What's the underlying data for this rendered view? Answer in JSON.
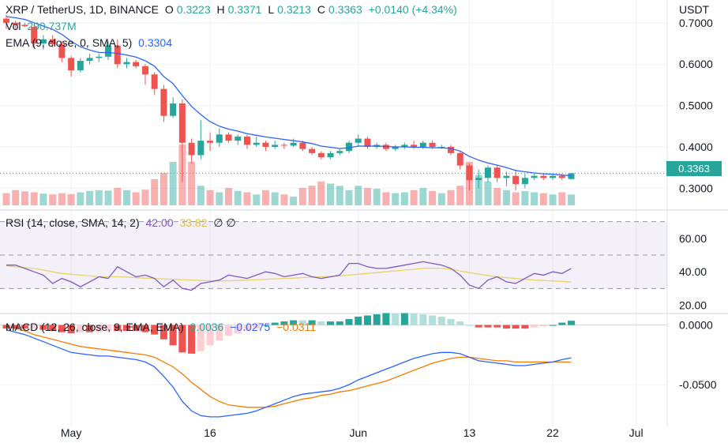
{
  "header": {
    "symbol": "XRP / TetherUS, 1D, BINANCE",
    "o_label": "O",
    "o": "0.3223",
    "h_label": "H",
    "h": "0.3371",
    "l_label": "L",
    "l": "0.3213",
    "c_label": "C",
    "c": "0.3363",
    "change": "+0.0140 (+4.34%)",
    "currency": "USDT"
  },
  "vol": {
    "label": "Vol",
    "value": "290.737M"
  },
  "ema": {
    "label": "EMA (9, close, 0, SMA, 5)",
    "value": "0.3304"
  },
  "rsi": {
    "label": "RSI (14, close, SMA, 14, 2)",
    "value": "42.00",
    "ma": "33.82",
    "icons": "∅ ∅"
  },
  "macd": {
    "label": "MACD (12, 26, close, 9, EMA, EMA)",
    "hist": "0.0036",
    "macd": "−0.0275",
    "signal": "−0.0311"
  },
  "price_tag": "0.3363",
  "colors": {
    "up": "#26a69a",
    "down": "#ef5350",
    "ema": "#2962ff",
    "rsi": "#7e57c2",
    "rsi_ma": "#e8d36a",
    "macd": "#2962ff",
    "signal": "#f57c00"
  },
  "chart_data": {
    "type": "candlestick",
    "price_axis": {
      "ylim": [
        0.255,
        0.755
      ],
      "ticks": [
        "0.7000",
        "0.6000",
        "0.5000",
        "0.4000",
        "0.3000"
      ]
    },
    "rsi_axis": {
      "ylim": [
        16,
        75
      ],
      "ticks": [
        "60.00",
        "40.00",
        "20.00"
      ],
      "bands": [
        70,
        50,
        30
      ]
    },
    "macd_axis": {
      "ylim": [
        -0.085,
        0.009
      ],
      "ticks": [
        "0.0000",
        "-0.0500"
      ]
    },
    "x_labels": [
      {
        "text": "May",
        "index": 7
      },
      {
        "text": "16",
        "index": 22
      },
      {
        "text": "Jun",
        "index": 38
      },
      {
        "text": "13",
        "index": 50
      },
      {
        "text": "22",
        "index": 59
      },
      {
        "text": "Jul",
        "index": 68
      }
    ],
    "candles": [
      [
        0.71,
        0.72,
        0.685,
        0.7
      ],
      [
        0.7,
        0.705,
        0.685,
        0.695
      ],
      [
        0.695,
        0.7,
        0.69,
        0.692
      ],
      [
        0.69,
        0.695,
        0.64,
        0.65
      ],
      [
        0.65,
        0.67,
        0.635,
        0.66
      ],
      [
        0.66,
        0.67,
        0.64,
        0.648
      ],
      [
        0.648,
        0.655,
        0.605,
        0.615
      ],
      [
        0.615,
        0.62,
        0.57,
        0.585
      ],
      [
        0.585,
        0.615,
        0.58,
        0.608
      ],
      [
        0.608,
        0.625,
        0.6,
        0.615
      ],
      [
        0.615,
        0.625,
        0.605,
        0.618
      ],
      [
        0.618,
        0.655,
        0.61,
        0.645
      ],
      [
        0.645,
        0.66,
        0.59,
        0.6
      ],
      [
        0.6,
        0.615,
        0.59,
        0.605
      ],
      [
        0.605,
        0.61,
        0.59,
        0.595
      ],
      [
        0.595,
        0.6,
        0.55,
        0.575
      ],
      [
        0.575,
        0.58,
        0.525,
        0.54
      ],
      [
        0.54,
        0.55,
        0.46,
        0.475
      ],
      [
        0.475,
        0.52,
        0.47,
        0.505
      ],
      [
        0.505,
        0.515,
        0.315,
        0.41
      ],
      [
        0.41,
        0.42,
        0.36,
        0.38
      ],
      [
        0.38,
        0.465,
        0.37,
        0.415
      ],
      [
        0.415,
        0.435,
        0.39,
        0.41
      ],
      [
        0.41,
        0.445,
        0.4,
        0.43
      ],
      [
        0.43,
        0.435,
        0.41,
        0.415
      ],
      [
        0.415,
        0.43,
        0.405,
        0.425
      ],
      [
        0.425,
        0.43,
        0.395,
        0.405
      ],
      [
        0.405,
        0.425,
        0.4,
        0.41
      ],
      [
        0.41,
        0.415,
        0.39,
        0.4
      ],
      [
        0.4,
        0.415,
        0.395,
        0.405
      ],
      [
        0.405,
        0.41,
        0.395,
        0.403
      ],
      [
        0.403,
        0.42,
        0.4,
        0.41
      ],
      [
        0.41,
        0.415,
        0.39,
        0.395
      ],
      [
        0.395,
        0.4,
        0.38,
        0.385
      ],
      [
        0.385,
        0.39,
        0.37,
        0.375
      ],
      [
        0.375,
        0.39,
        0.37,
        0.385
      ],
      [
        0.385,
        0.395,
        0.38,
        0.39
      ],
      [
        0.39,
        0.415,
        0.385,
        0.41
      ],
      [
        0.41,
        0.43,
        0.4,
        0.42
      ],
      [
        0.42,
        0.425,
        0.395,
        0.4
      ],
      [
        0.4,
        0.41,
        0.395,
        0.405
      ],
      [
        0.405,
        0.41,
        0.39,
        0.395
      ],
      [
        0.395,
        0.405,
        0.39,
        0.4
      ],
      [
        0.4,
        0.41,
        0.395,
        0.405
      ],
      [
        0.405,
        0.415,
        0.395,
        0.4
      ],
      [
        0.4,
        0.415,
        0.395,
        0.41
      ],
      [
        0.41,
        0.415,
        0.395,
        0.4
      ],
      [
        0.4,
        0.405,
        0.395,
        0.4
      ],
      [
        0.4,
        0.405,
        0.38,
        0.385
      ],
      [
        0.385,
        0.39,
        0.345,
        0.355
      ],
      [
        0.355,
        0.36,
        0.295,
        0.32
      ],
      [
        0.32,
        0.345,
        0.3,
        0.325
      ],
      [
        0.325,
        0.355,
        0.315,
        0.35
      ],
      [
        0.35,
        0.355,
        0.315,
        0.325
      ],
      [
        0.325,
        0.34,
        0.305,
        0.33
      ],
      [
        0.33,
        0.345,
        0.295,
        0.31
      ],
      [
        0.31,
        0.335,
        0.3,
        0.325
      ],
      [
        0.325,
        0.335,
        0.32,
        0.33
      ],
      [
        0.33,
        0.335,
        0.32,
        0.325
      ],
      [
        0.325,
        0.335,
        0.32,
        0.33
      ],
      [
        0.33,
        0.335,
        0.32,
        0.325
      ],
      [
        0.3223,
        0.3371,
        0.3213,
        0.3363
      ]
    ],
    "volume_rel": [
      0.28,
      0.35,
      0.32,
      0.3,
      0.27,
      0.25,
      0.28,
      0.26,
      0.3,
      0.33,
      0.35,
      0.34,
      0.4,
      0.35,
      0.3,
      0.36,
      0.6,
      0.75,
      1.0,
      1.4,
      1.0,
      0.45,
      0.35,
      0.3,
      0.4,
      0.33,
      0.3,
      0.25,
      0.35,
      0.3,
      0.25,
      0.2,
      0.4,
      0.45,
      0.55,
      0.5,
      0.45,
      0.35,
      0.45,
      0.4,
      0.38,
      0.3,
      0.28,
      0.3,
      0.35,
      0.4,
      0.33,
      0.28,
      0.35,
      0.45,
      1.0,
      0.7,
      0.55,
      0.4,
      0.35,
      0.3,
      0.33,
      0.3,
      0.28,
      0.25,
      0.3,
      0.25
    ],
    "ema": [
      0.715,
      0.712,
      0.708,
      0.7,
      0.692,
      0.684,
      0.672,
      0.655,
      0.642,
      0.634,
      0.628,
      0.628,
      0.626,
      0.622,
      0.617,
      0.608,
      0.595,
      0.57,
      0.553,
      0.524,
      0.498,
      0.478,
      0.461,
      0.45,
      0.443,
      0.438,
      0.432,
      0.428,
      0.424,
      0.421,
      0.418,
      0.415,
      0.412,
      0.408,
      0.402,
      0.399,
      0.396,
      0.398,
      0.402,
      0.402,
      0.402,
      0.401,
      0.4,
      0.4,
      0.399,
      0.399,
      0.398,
      0.398,
      0.396,
      0.39,
      0.377,
      0.368,
      0.361,
      0.356,
      0.35,
      0.343,
      0.34,
      0.337,
      0.335,
      0.334,
      0.332,
      0.3304
    ],
    "rsi": [
      44,
      44,
      42,
      40,
      38,
      33,
      36,
      34,
      31,
      34,
      37,
      36,
      43,
      40,
      37,
      38,
      36,
      31,
      35,
      30,
      29,
      33,
      34,
      35,
      38,
      37,
      36,
      38,
      40,
      39,
      37,
      38,
      39,
      37,
      36,
      37,
      38,
      45,
      45,
      43,
      42,
      42,
      43,
      44,
      45,
      46,
      45,
      44,
      42,
      38,
      32,
      30,
      35,
      37,
      34,
      33,
      36,
      39,
      38,
      40,
      39,
      42.0
    ],
    "rsi_ma": [
      43.5,
      43.0,
      42.5,
      42.0,
      41.0,
      40.0,
      39.0,
      38.5,
      38.0,
      37.5,
      37.0,
      37.0,
      37.0,
      36.8,
      36.5,
      36.2,
      36.0,
      35.8,
      35.5,
      35.2,
      35.0,
      34.8,
      34.6,
      34.5,
      34.6,
      34.8,
      35.0,
      35.2,
      35.5,
      35.8,
      36.0,
      36.2,
      36.5,
      36.8,
      37.0,
      37.2,
      37.5,
      38.0,
      38.5,
      39.0,
      39.5,
      40.0,
      40.5,
      41.0,
      41.5,
      42.0,
      42.2,
      42.0,
      41.5,
      40.5,
      39.5,
      38.5,
      37.8,
      37.0,
      36.5,
      36.0,
      35.5,
      35.0,
      34.8,
      34.5,
      34.2,
      33.82
    ],
    "macd": [
      -0.004,
      -0.006,
      -0.008,
      -0.011,
      -0.014,
      -0.017,
      -0.02,
      -0.023,
      -0.024,
      -0.025,
      -0.026,
      -0.026,
      -0.027,
      -0.028,
      -0.029,
      -0.031,
      -0.035,
      -0.043,
      -0.052,
      -0.064,
      -0.072,
      -0.076,
      -0.077,
      -0.077,
      -0.076,
      -0.075,
      -0.074,
      -0.072,
      -0.069,
      -0.066,
      -0.063,
      -0.06,
      -0.058,
      -0.057,
      -0.056,
      -0.055,
      -0.053,
      -0.05,
      -0.046,
      -0.043,
      -0.04,
      -0.037,
      -0.034,
      -0.031,
      -0.028,
      -0.026,
      -0.024,
      -0.023,
      -0.023,
      -0.024,
      -0.027,
      -0.03,
      -0.031,
      -0.032,
      -0.033,
      -0.034,
      -0.034,
      -0.033,
      -0.032,
      -0.031,
      -0.029,
      -0.0275
    ],
    "signal": [
      -0.001,
      -0.003,
      -0.005,
      -0.008,
      -0.01,
      -0.012,
      -0.014,
      -0.016,
      -0.018,
      -0.019,
      -0.02,
      -0.021,
      -0.022,
      -0.023,
      -0.024,
      -0.025,
      -0.027,
      -0.031,
      -0.035,
      -0.041,
      -0.048,
      -0.054,
      -0.06,
      -0.064,
      -0.067,
      -0.068,
      -0.069,
      -0.069,
      -0.069,
      -0.068,
      -0.066,
      -0.064,
      -0.062,
      -0.061,
      -0.059,
      -0.058,
      -0.056,
      -0.055,
      -0.053,
      -0.051,
      -0.049,
      -0.047,
      -0.044,
      -0.041,
      -0.038,
      -0.035,
      -0.032,
      -0.03,
      -0.028,
      -0.027,
      -0.027,
      -0.028,
      -0.029,
      -0.03,
      -0.03,
      -0.031,
      -0.031,
      -0.031,
      -0.031,
      -0.031,
      -0.031,
      -0.0311
    ]
  }
}
